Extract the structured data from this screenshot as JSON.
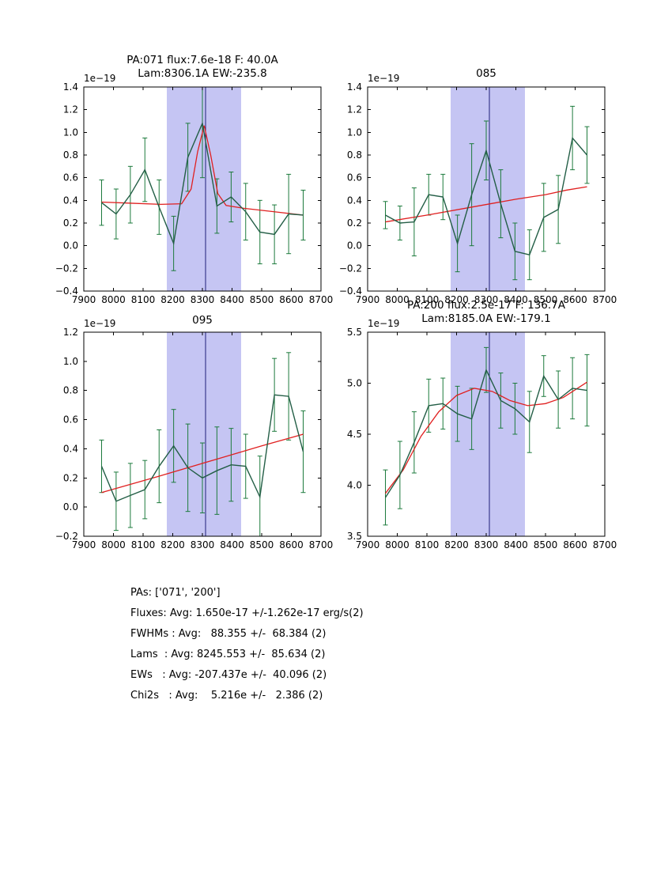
{
  "colors": {
    "band": "#c5c5f3",
    "vline": "#1f1f7a",
    "data": "#235e46",
    "err": "#1c7a3c",
    "fit": "#e02020",
    "frame": "#000000"
  },
  "chart_data": [
    {
      "type": "line",
      "name": "pa071",
      "title_lines": [
        "PA:071 flux:7.6e-18 F: 40.0A",
        "Lam:8306.1A EW:-235.8"
      ],
      "offset_label": "1e−19",
      "xlim": [
        7900,
        8700
      ],
      "ylim": [
        -0.4,
        1.4
      ],
      "xticks": [
        7900,
        8000,
        8100,
        8200,
        8300,
        8400,
        8500,
        8600,
        8700
      ],
      "xtick_labels": [
        "7900",
        "8000",
        "8100",
        "8200",
        "8300",
        "8400",
        "8500",
        "8600",
        "8700"
      ],
      "yticks": [
        -0.4,
        -0.2,
        0.0,
        0.2,
        0.4,
        0.6,
        0.8,
        1.0,
        1.2,
        1.4
      ],
      "ytick_labels": [
        "−0.4",
        "−0.2",
        "0.0",
        "0.2",
        "0.4",
        "0.6",
        "0.8",
        "1.0",
        "1.2",
        "1.4"
      ],
      "band": [
        8180,
        8430
      ],
      "vline": 8310,
      "x": [
        7960,
        8009,
        8057,
        8106,
        8154,
        8203,
        8251,
        8300,
        8349,
        8397,
        8446,
        8494,
        8543,
        8591,
        8640
      ],
      "y": [
        0.38,
        0.28,
        0.45,
        0.67,
        0.34,
        0.02,
        0.78,
        1.08,
        0.35,
        0.43,
        0.3,
        0.12,
        0.1,
        0.28,
        0.27
      ],
      "yerr": [
        0.2,
        0.22,
        0.25,
        0.28,
        0.24,
        0.24,
        0.3,
        0.48,
        0.24,
        0.22,
        0.25,
        0.28,
        0.26,
        0.35,
        0.22
      ],
      "fit_x": [
        7960,
        8060,
        8160,
        8230,
        8262,
        8284,
        8306,
        8328,
        8352,
        8380,
        8440,
        8540,
        8640
      ],
      "fit_y": [
        0.385,
        0.375,
        0.365,
        0.37,
        0.5,
        0.83,
        1.06,
        0.8,
        0.46,
        0.355,
        0.33,
        0.3,
        0.27
      ]
    },
    {
      "type": "line",
      "name": "pa085",
      "title_lines": [
        "085"
      ],
      "offset_label": "1e−19",
      "xlim": [
        7900,
        8700
      ],
      "ylim": [
        -0.4,
        1.4
      ],
      "xticks": [
        7900,
        8000,
        8100,
        8200,
        8300,
        8400,
        8500,
        8600,
        8700
      ],
      "xtick_labels": [
        "7900",
        "8000",
        "8100",
        "8200",
        "8300",
        "8400",
        "8500",
        "8600",
        "8700"
      ],
      "yticks": [
        -0.4,
        -0.2,
        0.0,
        0.2,
        0.4,
        0.6,
        0.8,
        1.0,
        1.2,
        1.4
      ],
      "ytick_labels": [
        "−0.4",
        "−0.2",
        "0.0",
        "0.2",
        "0.4",
        "0.6",
        "0.8",
        "1.0",
        "1.2",
        "1.4"
      ],
      "band": [
        8180,
        8430
      ],
      "vline": 8310,
      "x": [
        7960,
        8009,
        8057,
        8106,
        8154,
        8203,
        8251,
        8300,
        8349,
        8397,
        8446,
        8494,
        8543,
        8591,
        8640
      ],
      "y": [
        0.27,
        0.2,
        0.21,
        0.45,
        0.43,
        0.02,
        0.45,
        0.84,
        0.37,
        -0.05,
        -0.08,
        0.25,
        0.32,
        0.95,
        0.8
      ],
      "yerr": [
        0.12,
        0.15,
        0.3,
        0.18,
        0.2,
        0.25,
        0.45,
        0.26,
        0.3,
        0.25,
        0.22,
        0.3,
        0.3,
        0.28,
        0.25
      ],
      "fit_x": [
        7960,
        8100,
        8250,
        8400,
        8500,
        8570,
        8640
      ],
      "fit_y": [
        0.21,
        0.27,
        0.34,
        0.41,
        0.45,
        0.49,
        0.52
      ]
    },
    {
      "type": "line",
      "name": "pa095",
      "title_lines": [
        "095"
      ],
      "offset_label": "1e−19",
      "xlim": [
        7900,
        8700
      ],
      "ylim": [
        -0.2,
        1.2
      ],
      "xticks": [
        7900,
        8000,
        8100,
        8200,
        8300,
        8400,
        8500,
        8600,
        8700
      ],
      "xtick_labels": [
        "7900",
        "8000",
        "8100",
        "8200",
        "8300",
        "8400",
        "8500",
        "8600",
        "8700"
      ],
      "yticks": [
        -0.2,
        0.0,
        0.2,
        0.4,
        0.6,
        0.8,
        1.0,
        1.2
      ],
      "ytick_labels": [
        "−0.2",
        "0.0",
        "0.2",
        "0.4",
        "0.6",
        "0.8",
        "1.0",
        "1.2"
      ],
      "band": [
        8180,
        8430
      ],
      "vline": 8310,
      "x": [
        7960,
        8009,
        8057,
        8106,
        8154,
        8203,
        8251,
        8300,
        8349,
        8397,
        8446,
        8494,
        8543,
        8591,
        8640
      ],
      "y": [
        0.28,
        0.04,
        0.08,
        0.12,
        0.28,
        0.42,
        0.27,
        0.2,
        0.25,
        0.29,
        0.28,
        0.07,
        0.77,
        0.76,
        0.38
      ],
      "yerr": [
        0.18,
        0.2,
        0.22,
        0.2,
        0.25,
        0.25,
        0.3,
        0.24,
        0.3,
        0.25,
        0.22,
        0.28,
        0.25,
        0.3,
        0.28
      ],
      "fit_x": [
        7960,
        8150,
        8350,
        8500,
        8640
      ],
      "fit_y": [
        0.1,
        0.21,
        0.33,
        0.42,
        0.5
      ]
    },
    {
      "type": "line",
      "name": "pa200",
      "title_lines": [
        "PA:200 flux:2.5e-17 F: 136.7A",
        "Lam:8185.0A EW:-179.1"
      ],
      "offset_label": "1e−19",
      "xlim": [
        7900,
        8700
      ],
      "ylim": [
        3.5,
        5.5
      ],
      "xticks": [
        7900,
        8000,
        8100,
        8200,
        8300,
        8400,
        8500,
        8600,
        8700
      ],
      "xtick_labels": [
        "7900",
        "8000",
        "8100",
        "8200",
        "8300",
        "8400",
        "8500",
        "8600",
        "8700"
      ],
      "yticks": [
        3.5,
        4.0,
        4.5,
        5.0,
        5.5
      ],
      "ytick_labels": [
        "3.5",
        "4.0",
        "4.5",
        "5.0",
        "5.5"
      ],
      "band": [
        8180,
        8430
      ],
      "vline": 8310,
      "x": [
        7960,
        8009,
        8057,
        8106,
        8154,
        8203,
        8251,
        8300,
        8349,
        8397,
        8446,
        8494,
        8543,
        8591,
        8640
      ],
      "y": [
        3.88,
        4.1,
        4.42,
        4.78,
        4.8,
        4.7,
        4.65,
        5.13,
        4.83,
        4.75,
        4.62,
        5.07,
        4.84,
        4.95,
        4.93
      ],
      "yerr": [
        0.27,
        0.33,
        0.3,
        0.26,
        0.25,
        0.27,
        0.3,
        0.22,
        0.27,
        0.25,
        0.3,
        0.2,
        0.28,
        0.3,
        0.35
      ],
      "fit_x": [
        7960,
        8020,
        8080,
        8140,
        8200,
        8260,
        8320,
        8380,
        8440,
        8500,
        8560,
        8640
      ],
      "fit_y": [
        3.92,
        4.15,
        4.48,
        4.72,
        4.88,
        4.95,
        4.92,
        4.83,
        4.78,
        4.8,
        4.86,
        5.01
      ]
    }
  ],
  "stats": {
    "lines": [
      "PAs: ['071', '200']",
      "Fluxes: Avg: 1.650e-17 +/-1.262e-17 erg/s(2)",
      "FWHMs : Avg:   88.355 +/-  68.384 (2)",
      "Lams  : Avg: 8245.553 +/-  85.634 (2)",
      "EWs   : Avg: -207.437e +/-  40.096 (2)",
      "Chi2s   : Avg:    5.216e +/-   2.386 (2)"
    ]
  }
}
